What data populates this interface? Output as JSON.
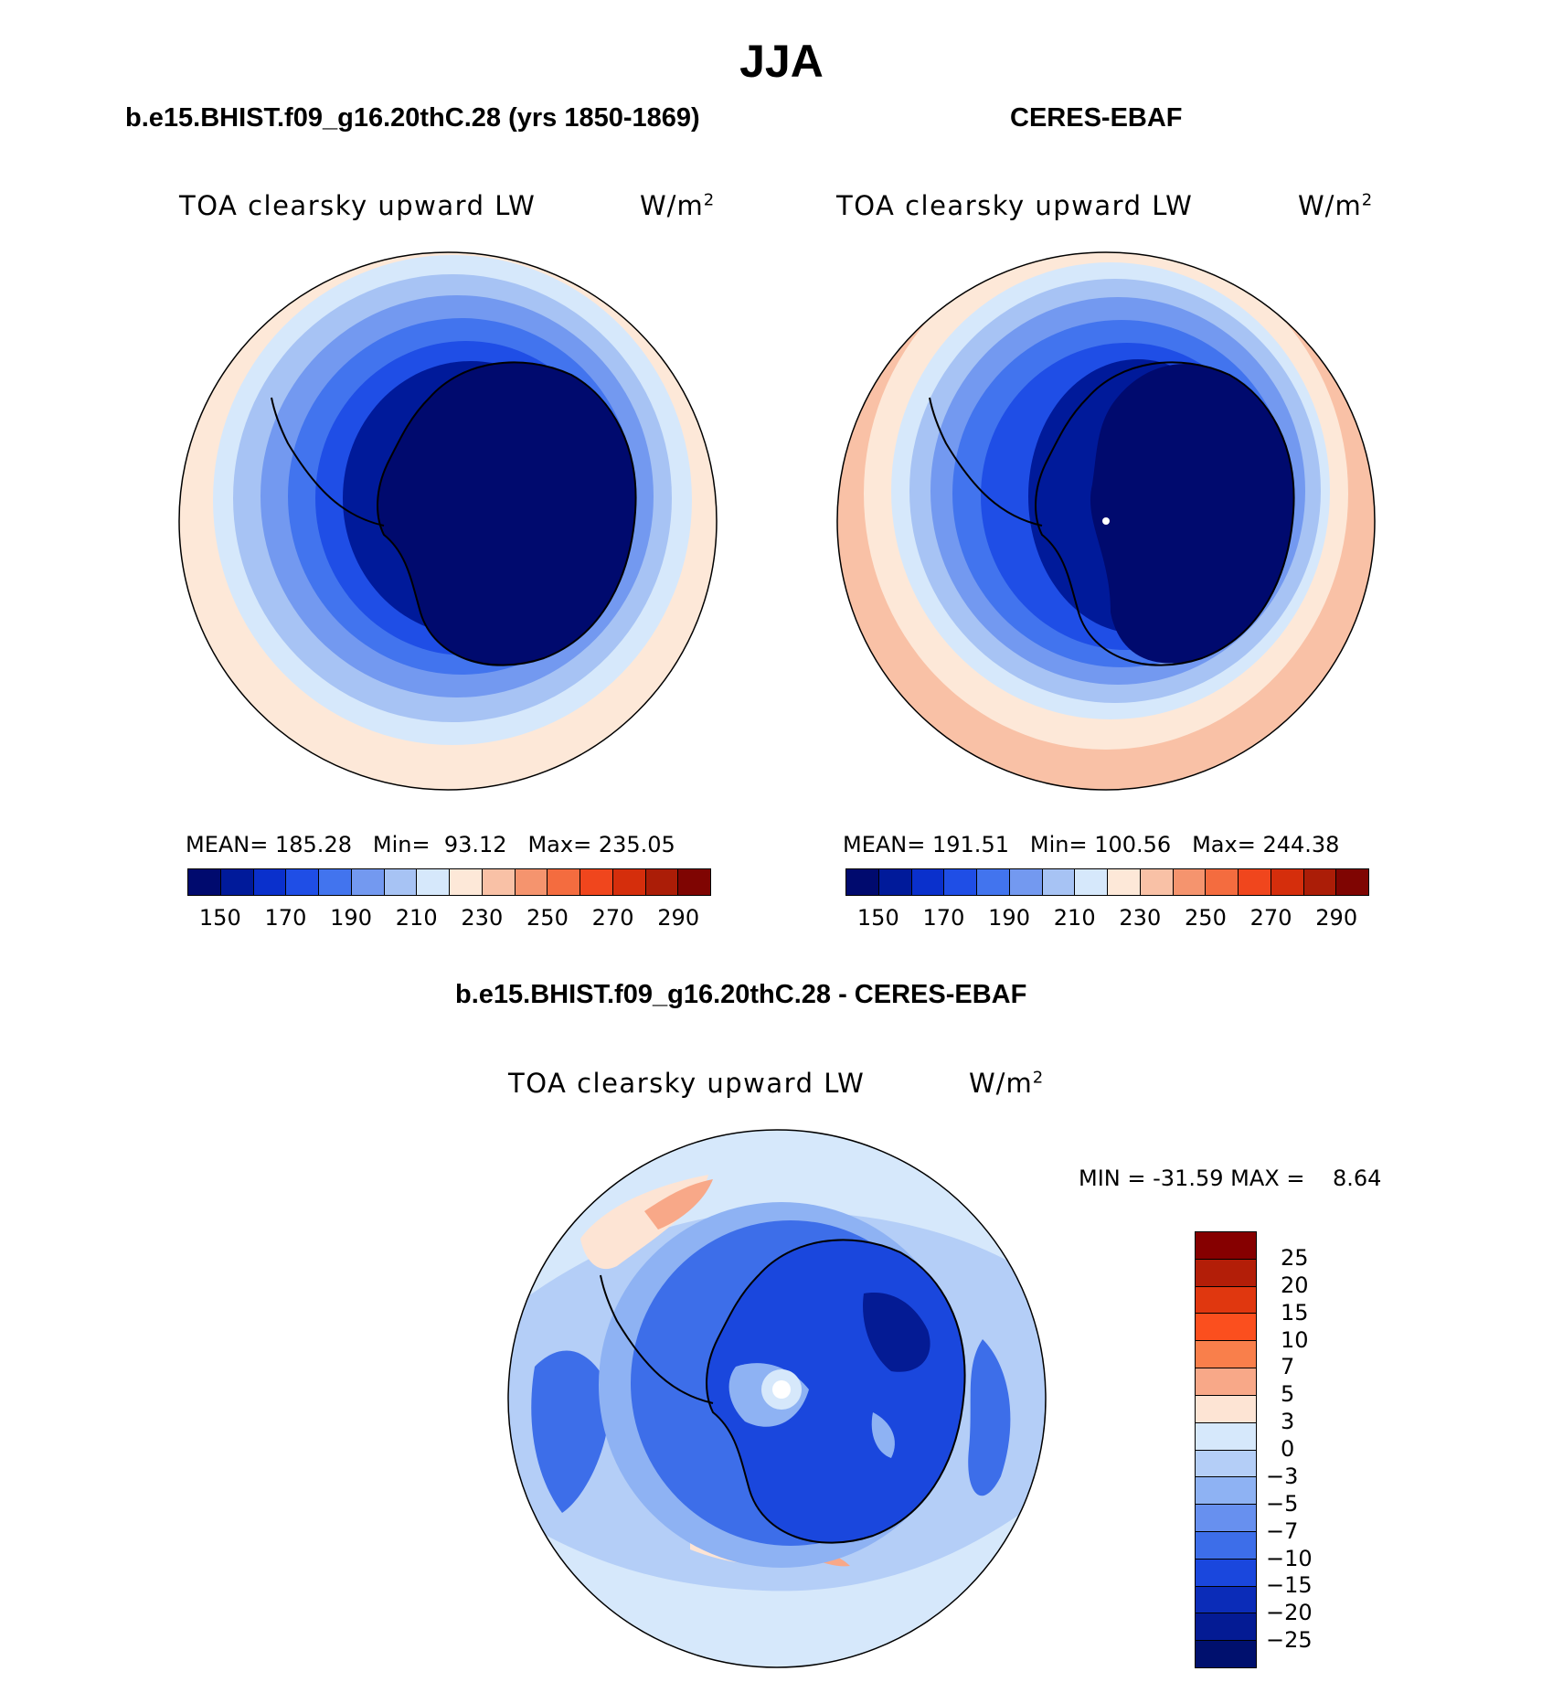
{
  "figure": {
    "season": "JJA"
  },
  "panels": {
    "model": {
      "title": "b.e15.BHIST.f09_g16.20thC.28 (yrs 1850-1869)",
      "variable": "TOA clearsky upward LW",
      "units_base": "W/m",
      "units_exp": "2",
      "stats": {
        "mean_label": "MEAN=",
        "mean": "185.28",
        "min_label": "Min=",
        "min": "93.12",
        "max_label": "Max=",
        "max": "235.05"
      }
    },
    "obs": {
      "title": "CERES-EBAF",
      "variable": "TOA clearsky upward LW",
      "units_base": "W/m",
      "units_exp": "2",
      "stats": {
        "mean_label": "MEAN=",
        "mean": "191.51",
        "min_label": "Min=",
        "min": "100.56",
        "max_label": "Max=",
        "max": "244.38"
      }
    },
    "diff": {
      "title": "b.e15.BHIST.f09_g16.20thC.28 - CERES-EBAF",
      "variable": "TOA clearsky upward LW",
      "units_base": "W/m",
      "units_exp": "2",
      "stats": {
        "min_label": "MIN =",
        "min": "-31.59",
        "max_label": "MAX =",
        "max": "8.64"
      }
    }
  },
  "colorbars": {
    "main": {
      "colors": [
        "#000a6e",
        "#001a9a",
        "#0a30cc",
        "#1f4ee6",
        "#4274ee",
        "#7399f0",
        "#a7c3f4",
        "#d6e8fb",
        "#fde8d8",
        "#f9c1a6",
        "#f5946e",
        "#f46c3f",
        "#f0461d",
        "#d52e0c",
        "#ab1d07",
        "#7f0502"
      ],
      "tick_labels": [
        "150",
        "170",
        "190",
        "210",
        "230",
        "250",
        "270",
        "290"
      ]
    },
    "diff": {
      "colors": [
        "#860000",
        "#b31e08",
        "#e0370f",
        "#fb4f1e",
        "#f97f4b",
        "#f8a888",
        "#fde4d4",
        "#d6e8fb",
        "#b4cef7",
        "#8eb2f3",
        "#6790ef",
        "#3d6ee9",
        "#1a47dd",
        "#0b2cb8",
        "#041b94",
        "#00106e"
      ],
      "tick_labels": [
        "25",
        "20",
        "15",
        "10",
        "7",
        "5",
        "3",
        "0",
        "−3",
        "−5",
        "−7",
        "−10",
        "−15",
        "−20",
        "−25"
      ]
    }
  },
  "legend_items": {
    "model_low": "150",
    "model_high": "290"
  }
}
